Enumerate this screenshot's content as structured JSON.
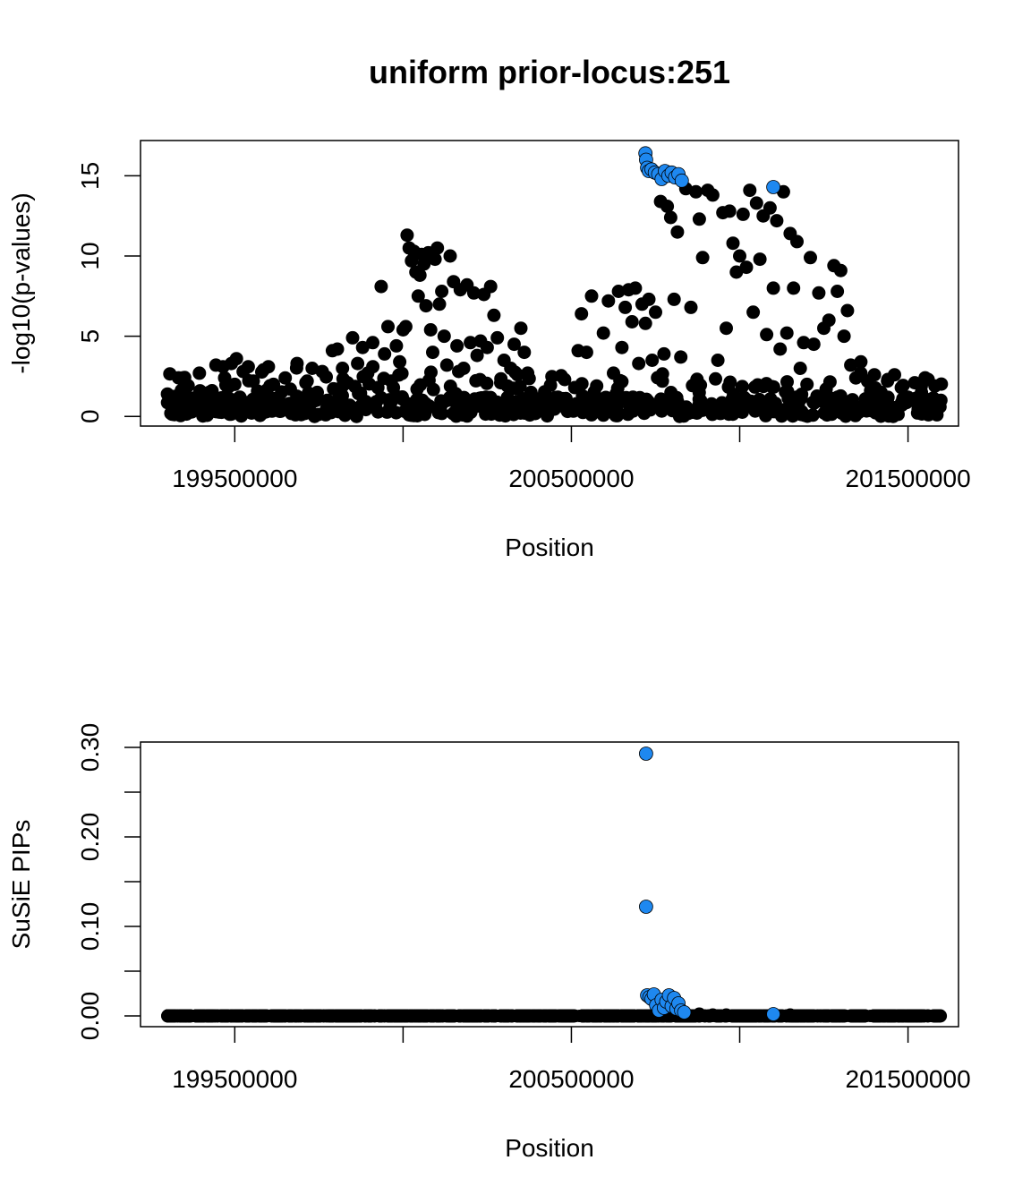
{
  "figure": {
    "title": "uniform prior-locus:251"
  },
  "chart_data": [
    {
      "type": "scatter",
      "xlabel": "Position",
      "ylabel": "-log10(p-values)",
      "xlim": [
        199220000,
        201650000
      ],
      "ylim": [
        -0.6,
        17.2
      ],
      "x_ticks": [
        199500000,
        200000000,
        200500000,
        201000000,
        201500000
      ],
      "x_tick_labels": [
        "199500000",
        "",
        "200500000",
        "",
        "201500000"
      ],
      "y_ticks": [
        0,
        5,
        10,
        15
      ],
      "y_tick_labels": [
        "0",
        "5",
        "10",
        "15"
      ],
      "grid": false,
      "point_color": "#000000",
      "highlight_color": "#1e88f0",
      "series": [
        {
          "points": [
            [
              199300000,
              1.4
            ],
            [
              199310000,
              0.2
            ],
            [
              199325000,
              0.9
            ],
            [
              199340000,
              0.4
            ],
            [
              199360000,
              1.2
            ],
            [
              199375000,
              0.6
            ],
            [
              199395000,
              2.7
            ],
            [
              199410000,
              0.8
            ],
            [
              199430000,
              1.3
            ],
            [
              199445000,
              0.3
            ],
            [
              199465000,
              3.1
            ],
            [
              199470000,
              2.4
            ],
            [
              199480000,
              1.8
            ],
            [
              199490000,
              3.3
            ],
            [
              199500000,
              2.0
            ],
            [
              199505000,
              3.6
            ],
            [
              199515000,
              1.2
            ],
            [
              199525000,
              2.8
            ],
            [
              199540000,
              3.1
            ],
            [
              199555000,
              2.2
            ],
            [
              199570000,
              1.5
            ],
            [
              199585000,
              2.9
            ],
            [
              199600000,
              3.1
            ],
            [
              199615000,
              2.0
            ],
            [
              199630000,
              1.1
            ],
            [
              199650000,
              2.4
            ],
            [
              199665000,
              1.7
            ],
            [
              199685000,
              3.3
            ],
            [
              199700000,
              0.9
            ],
            [
              199715000,
              2.2
            ],
            [
              199730000,
              3.0
            ],
            [
              199745000,
              1.5
            ],
            [
              199760000,
              2.8
            ],
            [
              199775000,
              1.0
            ],
            [
              199790000,
              4.1
            ],
            [
              199805000,
              4.2
            ],
            [
              199820000,
              3.0
            ],
            [
              199835000,
              2.1
            ],
            [
              199850000,
              4.9
            ],
            [
              199865000,
              3.3
            ],
            [
              199880000,
              4.3
            ],
            [
              199895000,
              2.7
            ],
            [
              199910000,
              4.6
            ],
            [
              199925000,
              1.8
            ],
            [
              199935000,
              8.1
            ],
            [
              199945000,
              3.9
            ],
            [
              199955000,
              5.6
            ],
            [
              199965000,
              2.2
            ],
            [
              199980000,
              4.4
            ],
            [
              199990000,
              3.4
            ],
            [
              200000000,
              5.4
            ],
            [
              200008000,
              5.6
            ],
            [
              200012000,
              11.3
            ],
            [
              200018000,
              10.5
            ],
            [
              200025000,
              9.7
            ],
            [
              200032000,
              10.3
            ],
            [
              200038000,
              9.0
            ],
            [
              200045000,
              7.5
            ],
            [
              200050000,
              8.8
            ],
            [
              200055000,
              10.1
            ],
            [
              200062000,
              9.5
            ],
            [
              200068000,
              6.9
            ],
            [
              200075000,
              10.2
            ],
            [
              200082000,
              5.4
            ],
            [
              200088000,
              4.0
            ],
            [
              200095000,
              9.8
            ],
            [
              200102000,
              10.5
            ],
            [
              200108000,
              7.0
            ],
            [
              200115000,
              7.8
            ],
            [
              200122000,
              5.0
            ],
            [
              200130000,
              3.2
            ],
            [
              200140000,
              10.0
            ],
            [
              200150000,
              8.4
            ],
            [
              200160000,
              4.4
            ],
            [
              200170000,
              7.9
            ],
            [
              200180000,
              3.0
            ],
            [
              200190000,
              8.2
            ],
            [
              200200000,
              4.6
            ],
            [
              200210000,
              7.7
            ],
            [
              200220000,
              3.8
            ],
            [
              200230000,
              4.7
            ],
            [
              200240000,
              7.6
            ],
            [
              200250000,
              4.3
            ],
            [
              200260000,
              8.1
            ],
            [
              200270000,
              6.3
            ],
            [
              200280000,
              4.9
            ],
            [
              200290000,
              2.1
            ],
            [
              200300000,
              3.5
            ],
            [
              200310000,
              1.9
            ],
            [
              200320000,
              3.0
            ],
            [
              200330000,
              4.5
            ],
            [
              200340000,
              2.6
            ],
            [
              200350000,
              5.5
            ],
            [
              200360000,
              4.0
            ],
            [
              200370000,
              2.7
            ],
            [
              200380000,
              1.5
            ],
            [
              200400000,
              1.0
            ],
            [
              200420000,
              1.3
            ],
            [
              200440000,
              0.6
            ],
            [
              200460000,
              1.2
            ],
            [
              200480000,
              0.8
            ],
            [
              200500000,
              0.5
            ],
            [
              200510000,
              1.8
            ],
            [
              200520000,
              4.1
            ],
            [
              200530000,
              6.4
            ],
            [
              200545000,
              4.0
            ],
            [
              200560000,
              7.5
            ],
            [
              200575000,
              1.9
            ],
            [
              200595000,
              5.2
            ],
            [
              200610000,
              7.2
            ],
            [
              200625000,
              2.7
            ],
            [
              200640000,
              7.8
            ],
            [
              200650000,
              4.3
            ],
            [
              200660000,
              6.8
            ],
            [
              200670000,
              7.9
            ],
            [
              200680000,
              5.9
            ],
            [
              200690000,
              8.0
            ],
            [
              200700000,
              3.3
            ],
            [
              200710000,
              7.0
            ],
            [
              200720000,
              5.8
            ],
            [
              200730000,
              7.3
            ],
            [
              200740000,
              3.5
            ],
            [
              200750000,
              6.5
            ],
            [
              200765000,
              13.4
            ],
            [
              200775000,
              3.9
            ],
            [
              200785000,
              13.1
            ],
            [
              200795000,
              12.4
            ],
            [
              200805000,
              7.3
            ],
            [
              200815000,
              11.5
            ],
            [
              200825000,
              3.7
            ],
            [
              200840000,
              14.2
            ],
            [
              200855000,
              6.8
            ],
            [
              200870000,
              14.0
            ],
            [
              200880000,
              12.3
            ],
            [
              200890000,
              9.9
            ],
            [
              200905000,
              14.1
            ],
            [
              200920000,
              13.8
            ],
            [
              200935000,
              3.5
            ],
            [
              200950000,
              12.7
            ],
            [
              200960000,
              5.5
            ],
            [
              200970000,
              12.8
            ],
            [
              200980000,
              10.8
            ],
            [
              200990000,
              9.0
            ],
            [
              201000000,
              10.0
            ],
            [
              201010000,
              12.6
            ],
            [
              201020000,
              9.3
            ],
            [
              201030000,
              14.1
            ],
            [
              201040000,
              6.5
            ],
            [
              201050000,
              13.3
            ],
            [
              201060000,
              9.8
            ],
            [
              201070000,
              12.5
            ],
            [
              201080000,
              5.1
            ],
            [
              201090000,
              13.0
            ],
            [
              201100000,
              8.0
            ],
            [
              201110000,
              12.2
            ],
            [
              201120000,
              4.2
            ],
            [
              201130000,
              14.0
            ],
            [
              201140000,
              5.2
            ],
            [
              201150000,
              11.4
            ],
            [
              201160000,
              8.0
            ],
            [
              201170000,
              10.9
            ],
            [
              201180000,
              3.0
            ],
            [
              201190000,
              4.6
            ],
            [
              201200000,
              2.0
            ],
            [
              201210000,
              9.9
            ],
            [
              201220000,
              4.5
            ],
            [
              201235000,
              7.7
            ],
            [
              201250000,
              5.5
            ],
            [
              201265000,
              6.0
            ],
            [
              201280000,
              9.4
            ],
            [
              201290000,
              7.8
            ],
            [
              201300000,
              9.1
            ],
            [
              201310000,
              5.0
            ],
            [
              201320000,
              6.6
            ],
            [
              201330000,
              3.2
            ],
            [
              201345000,
              2.4
            ],
            [
              201360000,
              3.4
            ],
            [
              201380000,
              2.2
            ],
            [
              201400000,
              2.6
            ],
            [
              201420000,
              1.5
            ],
            [
              201440000,
              2.3
            ],
            [
              201460000,
              2.6
            ],
            [
              201480000,
              1.8
            ],
            [
              201500000,
              1.2
            ],
            [
              201520000,
              2.1
            ],
            [
              201540000,
              1.5
            ],
            [
              201560000,
              2.3
            ],
            [
              201580000,
              1.9
            ],
            [
              201595000,
              0.6
            ]
          ],
          "highlight_points": [
            [
              200720000,
              16.4
            ],
            [
              200722000,
              16.0
            ],
            [
              200725000,
              15.5
            ],
            [
              200730000,
              15.3
            ],
            [
              200738000,
              15.4
            ],
            [
              200748000,
              15.2
            ],
            [
              200758000,
              15.1
            ],
            [
              200768000,
              14.8
            ],
            [
              200778000,
              15.3
            ],
            [
              200788000,
              15.0
            ],
            [
              200798000,
              15.2
            ],
            [
              200808000,
              14.9
            ],
            [
              200818000,
              15.1
            ],
            [
              200828000,
              14.7
            ],
            [
              201100000,
              14.3
            ]
          ],
          "baseline_range": [
            199300000,
            201600000
          ]
        }
      ]
    },
    {
      "type": "scatter",
      "xlabel": "Position",
      "ylabel": "SuSiE PIPs",
      "xlim": [
        199220000,
        201650000
      ],
      "ylim": [
        -0.012,
        0.306
      ],
      "x_ticks": [
        199500000,
        200000000,
        200500000,
        201000000,
        201500000
      ],
      "x_tick_labels": [
        "199500000",
        "",
        "200500000",
        "",
        "201500000"
      ],
      "y_ticks": [
        0.0,
        0.05,
        0.1,
        0.15,
        0.2,
        0.25,
        0.3
      ],
      "y_tick_labels": [
        "0.00",
        "",
        "0.10",
        "",
        "0.20",
        "",
        "0.30"
      ],
      "grid": false,
      "point_color": "#000000",
      "highlight_color": "#1e88f0",
      "series": [
        {
          "points": [
            [
              200880000,
              0.002
            ],
            [
              200920000,
              0.001
            ],
            [
              200960000,
              0.001
            ],
            [
              201150000,
              0.001
            ]
          ],
          "highlight_points": [
            [
              200722000,
              0.293
            ],
            [
              200722000,
              0.122
            ],
            [
              200725000,
              0.023
            ],
            [
              200732000,
              0.021
            ],
            [
              200738000,
              0.019
            ],
            [
              200745000,
              0.024
            ],
            [
              200752000,
              0.012
            ],
            [
              200760000,
              0.006
            ],
            [
              200768000,
              0.018
            ],
            [
              200775000,
              0.009
            ],
            [
              200782000,
              0.016
            ],
            [
              200790000,
              0.023
            ],
            [
              200798000,
              0.011
            ],
            [
              200805000,
              0.02
            ],
            [
              200812000,
              0.008
            ],
            [
              200818000,
              0.014
            ],
            [
              200826000,
              0.006
            ],
            [
              200835000,
              0.004
            ],
            [
              201100000,
              0.002
            ]
          ],
          "baseline_range": [
            199300000,
            201600000
          ]
        }
      ]
    }
  ]
}
